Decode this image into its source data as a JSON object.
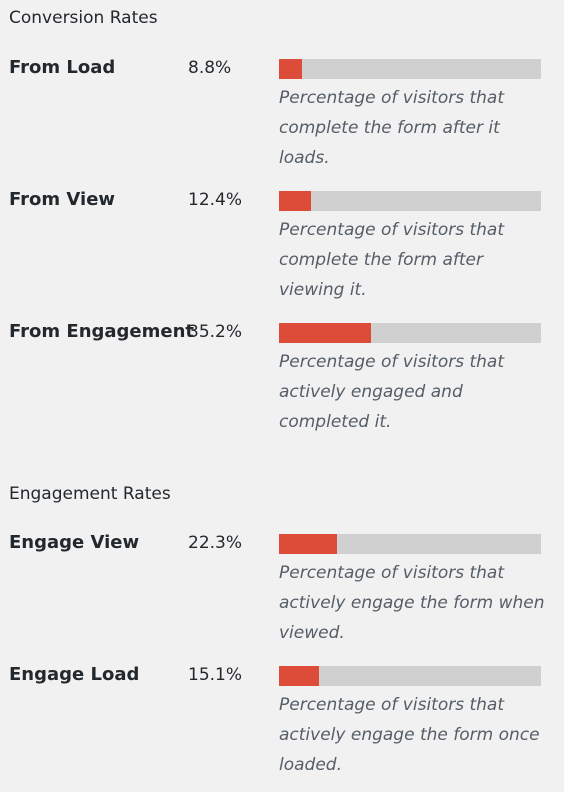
{
  "conversion": {
    "title": "Conversion Rates",
    "rows": [
      {
        "label": "From Load",
        "value_text": "8.8%",
        "value": 8.8,
        "description": "Percentage of visitors that complete the form after it loads."
      },
      {
        "label": "From View",
        "value_text": "12.4%",
        "value": 12.4,
        "description": "Percentage of visitors that complete the form after viewing it."
      },
      {
        "label": "From Engagement",
        "value_text": "35.2%",
        "value": 35.2,
        "description": "Percentage of visitors that actively engaged and completed it."
      }
    ]
  },
  "engagement": {
    "title": "Engagement Rates",
    "rows": [
      {
        "label": "Engage View",
        "value_text": "22.3%",
        "value": 22.3,
        "description": "Percentage of visitors that actively engage the form when viewed."
      },
      {
        "label": "Engage Load",
        "value_text": "15.1%",
        "value": 15.1,
        "description": "Percentage of visitors that actively engage the form once loaded."
      }
    ]
  },
  "colors": {
    "bar_fill": "#dd4b39",
    "bar_track": "#d0d0d0",
    "background": "#f1f1f1"
  }
}
